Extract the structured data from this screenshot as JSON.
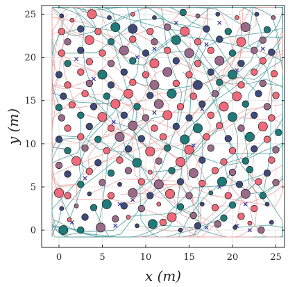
{
  "chart_data": {
    "type": "scatter",
    "title": "",
    "xlabel": "x (m)",
    "ylabel": "y (m)",
    "xlim": [
      -2,
      26
    ],
    "ylim": [
      -2,
      26
    ],
    "x_ticks": [
      0,
      5,
      10,
      15,
      20,
      25
    ],
    "y_ticks": [
      0,
      5,
      10,
      15,
      20,
      25
    ],
    "grid": true,
    "legend": "none",
    "colors": {
      "teal": "#1f7a7a",
      "pink": "#f06a7a",
      "navy": "#3d4a7a",
      "mauve": "#9a6a8a",
      "trajectory_pink": "#e8a0a0",
      "trajectory_teal": "#4a9a9a",
      "cross": "#3a3aa0"
    },
    "points": [
      [
        0.5,
        0.0,
        "teal",
        "l"
      ],
      [
        2.5,
        0.0,
        "teal",
        "m"
      ],
      [
        4.8,
        0.3,
        "mauve",
        "l"
      ],
      [
        9.0,
        0.5,
        "navy",
        "s"
      ],
      [
        10.8,
        0.7,
        "teal",
        "l"
      ],
      [
        12.0,
        0.9,
        "pink",
        "m"
      ],
      [
        14.0,
        0.0,
        "navy",
        "s"
      ],
      [
        16.0,
        0.5,
        "navy",
        "m"
      ],
      [
        18.3,
        0.7,
        "mauve",
        "m"
      ],
      [
        20.3,
        0.3,
        "navy",
        "s"
      ],
      [
        22.0,
        0.8,
        "pink",
        "s"
      ],
      [
        23.3,
        0.0,
        "mauve",
        "m"
      ],
      [
        24.5,
        0.9,
        "navy",
        "s"
      ],
      [
        1.2,
        1.2,
        "pink",
        "s"
      ],
      [
        3.0,
        1.5,
        "navy",
        "m"
      ],
      [
        6.5,
        1.3,
        "mauve",
        "m"
      ],
      [
        8.0,
        1.5,
        "pink",
        "s"
      ],
      [
        13.0,
        1.5,
        "pink",
        "l"
      ],
      [
        15.5,
        1.7,
        "mauve",
        "m"
      ],
      [
        19.0,
        1.4,
        "teal",
        "m"
      ],
      [
        21.0,
        1.6,
        "pink",
        "m"
      ],
      [
        0.3,
        2.5,
        "navy",
        "s"
      ],
      [
        2.0,
        2.8,
        "mauve",
        "s"
      ],
      [
        4.0,
        2.6,
        "teal",
        "m"
      ],
      [
        5.5,
        3.0,
        "teal",
        "l"
      ],
      [
        7.5,
        2.8,
        "navy",
        "m"
      ],
      [
        9.5,
        2.5,
        "mauve",
        "m"
      ],
      [
        11.5,
        3.0,
        "pink",
        "s"
      ],
      [
        14.0,
        2.7,
        "teal",
        "m"
      ],
      [
        16.5,
        3.0,
        "navy",
        "s"
      ],
      [
        18.0,
        2.6,
        "pink",
        "m"
      ],
      [
        20.0,
        2.9,
        "teal",
        "m"
      ],
      [
        22.5,
        2.5,
        "pink",
        "m"
      ],
      [
        24.0,
        3.0,
        "navy",
        "s"
      ],
      [
        1.0,
        4.0,
        "pink",
        "m"
      ],
      [
        3.5,
        4.2,
        "navy",
        "s"
      ],
      [
        6.0,
        4.0,
        "pink",
        "m"
      ],
      [
        8.5,
        4.3,
        "mauve",
        "l"
      ],
      [
        10.5,
        4.0,
        "navy",
        "m"
      ],
      [
        12.8,
        4.2,
        "pink",
        "l"
      ],
      [
        15.0,
        4.0,
        "mauve",
        "m"
      ],
      [
        17.5,
        4.3,
        "teal",
        "s"
      ],
      [
        19.5,
        4.0,
        "pink",
        "m"
      ],
      [
        21.5,
        4.2,
        "mauve",
        "l"
      ],
      [
        23.5,
        4.0,
        "teal",
        "m"
      ],
      [
        0.0,
        4.3,
        "pink",
        "l"
      ],
      [
        2.5,
        5.3,
        "teal",
        "m"
      ],
      [
        5.0,
        5.5,
        "mauve",
        "m"
      ],
      [
        7.0,
        5.3,
        "navy",
        "s"
      ],
      [
        9.5,
        5.6,
        "pink",
        "m"
      ],
      [
        11.5,
        5.3,
        "mauve",
        "l"
      ],
      [
        14.0,
        5.6,
        "navy",
        "m"
      ],
      [
        16.5,
        5.4,
        "pink",
        "m"
      ],
      [
        18.8,
        5.6,
        "teal",
        "l"
      ],
      [
        20.8,
        5.3,
        "navy",
        "m"
      ],
      [
        23.0,
        5.6,
        "pink",
        "m"
      ],
      [
        25.0,
        5.5,
        "mauve",
        "m"
      ],
      [
        1.0,
        6.5,
        "navy",
        "m"
      ],
      [
        3.5,
        6.8,
        "pink",
        "m"
      ],
      [
        6.0,
        6.6,
        "teal",
        "m"
      ],
      [
        8.0,
        6.9,
        "mauve",
        "m"
      ],
      [
        10.5,
        6.7,
        "pink",
        "s"
      ],
      [
        13.0,
        6.9,
        "teal",
        "m"
      ],
      [
        15.5,
        6.6,
        "mauve",
        "l"
      ],
      [
        18.0,
        6.9,
        "pink",
        "m"
      ],
      [
        20.0,
        6.7,
        "mauve",
        "m"
      ],
      [
        22.0,
        7.0,
        "teal",
        "m"
      ],
      [
        24.0,
        6.6,
        "navy",
        "m"
      ],
      [
        0.0,
        7.5,
        "mauve",
        "m"
      ],
      [
        2.0,
        8.0,
        "pink",
        "l"
      ],
      [
        4.5,
        7.8,
        "navy",
        "m"
      ],
      [
        7.0,
        8.1,
        "pink",
        "m"
      ],
      [
        9.0,
        7.8,
        "teal",
        "l"
      ],
      [
        11.5,
        8.0,
        "mauve",
        "m"
      ],
      [
        14.0,
        7.9,
        "pink",
        "l"
      ],
      [
        16.5,
        8.1,
        "navy",
        "m"
      ],
      [
        19.0,
        7.9,
        "pink",
        "m"
      ],
      [
        21.5,
        8.0,
        "teal",
        "m"
      ],
      [
        24.5,
        8.1,
        "pink",
        "m"
      ],
      [
        1.0,
        9.2,
        "teal",
        "m"
      ],
      [
        3.0,
        9.5,
        "mauve",
        "m"
      ],
      [
        5.5,
        9.2,
        "pink",
        "m"
      ],
      [
        8.0,
        9.4,
        "navy",
        "m"
      ],
      [
        10.5,
        9.1,
        "pink",
        "l"
      ],
      [
        12.5,
        9.5,
        "teal",
        "m"
      ],
      [
        15.0,
        9.3,
        "pink",
        "l"
      ],
      [
        17.5,
        9.5,
        "mauve",
        "m"
      ],
      [
        20.0,
        9.2,
        "pink",
        "m"
      ],
      [
        22.5,
        9.4,
        "navy",
        "m"
      ],
      [
        25.0,
        9.3,
        "mauve",
        "m"
      ],
      [
        0.0,
        10.5,
        "navy",
        "m"
      ],
      [
        2.5,
        10.8,
        "pink",
        "m"
      ],
      [
        4.5,
        10.5,
        "teal",
        "m"
      ],
      [
        7.0,
        10.8,
        "mauve",
        "l"
      ],
      [
        9.5,
        10.6,
        "navy",
        "m"
      ],
      [
        12.0,
        10.8,
        "pink",
        "m"
      ],
      [
        14.5,
        10.5,
        "teal",
        "l"
      ],
      [
        17.0,
        10.8,
        "pink",
        "m"
      ],
      [
        19.5,
        10.6,
        "navy",
        "m"
      ],
      [
        22.0,
        10.8,
        "teal",
        "l"
      ],
      [
        24.0,
        10.5,
        "pink",
        "m"
      ],
      [
        1.0,
        11.8,
        "pink",
        "m"
      ],
      [
        3.5,
        12.0,
        "navy",
        "m"
      ],
      [
        6.0,
        11.8,
        "pink",
        "m"
      ],
      [
        8.5,
        12.1,
        "mauve",
        "l"
      ],
      [
        11.0,
        11.8,
        "pink",
        "m"
      ],
      [
        13.5,
        12.0,
        "navy",
        "m"
      ],
      [
        16.0,
        11.8,
        "teal",
        "l"
      ],
      [
        18.5,
        12.1,
        "pink",
        "m"
      ],
      [
        21.0,
        11.8,
        "mauve",
        "m"
      ],
      [
        23.5,
        12.0,
        "pink",
        "l"
      ],
      [
        25.3,
        11.3,
        "teal",
        "m"
      ],
      [
        0.3,
        13.0,
        "mauve",
        "m"
      ],
      [
        2.5,
        13.3,
        "teal",
        "m"
      ],
      [
        5.0,
        13.1,
        "pink",
        "l"
      ],
      [
        7.5,
        13.3,
        "navy",
        "m"
      ],
      [
        10.0,
        13.0,
        "mauve",
        "m"
      ],
      [
        12.5,
        13.3,
        "pink",
        "l"
      ],
      [
        15.0,
        13.0,
        "navy",
        "m"
      ],
      [
        17.5,
        13.3,
        "pink",
        "m"
      ],
      [
        20.0,
        13.1,
        "teal",
        "l"
      ],
      [
        22.5,
        13.3,
        "navy",
        "m"
      ],
      [
        24.5,
        13.0,
        "pink",
        "m"
      ],
      [
        0.0,
        14.2,
        "teal",
        "m"
      ],
      [
        1.5,
        14.5,
        "pink",
        "m"
      ],
      [
        4.0,
        14.3,
        "navy",
        "m"
      ],
      [
        6.5,
        14.6,
        "pink",
        "l"
      ],
      [
        9.0,
        14.3,
        "teal",
        "m"
      ],
      [
        11.5,
        14.6,
        "mauve",
        "l"
      ],
      [
        14.0,
        14.3,
        "pink",
        "m"
      ],
      [
        16.5,
        14.6,
        "navy",
        "m"
      ],
      [
        19.0,
        14.3,
        "pink",
        "l"
      ],
      [
        21.5,
        14.6,
        "teal",
        "m"
      ],
      [
        24.0,
        14.3,
        "mauve",
        "m"
      ],
      [
        0.5,
        15.5,
        "navy",
        "m"
      ],
      [
        3.0,
        15.8,
        "pink",
        "m"
      ],
      [
        5.5,
        15.5,
        "teal",
        "m"
      ],
      [
        8.0,
        15.8,
        "pink",
        "l"
      ],
      [
        10.5,
        15.6,
        "navy",
        "m"
      ],
      [
        13.0,
        15.8,
        "teal",
        "l"
      ],
      [
        15.5,
        15.5,
        "pink",
        "m"
      ],
      [
        18.0,
        15.8,
        "mauve",
        "m"
      ],
      [
        20.5,
        15.5,
        "pink",
        "l"
      ],
      [
        23.0,
        15.8,
        "navy",
        "m"
      ],
      [
        25.0,
        15.6,
        "pink",
        "m"
      ],
      [
        1.0,
        16.8,
        "pink",
        "m"
      ],
      [
        3.5,
        17.0,
        "mauve",
        "m"
      ],
      [
        6.0,
        16.8,
        "navy",
        "m"
      ],
      [
        8.5,
        17.1,
        "pink",
        "m"
      ],
      [
        11.0,
        16.8,
        "mauve",
        "l"
      ],
      [
        13.5,
        17.0,
        "pink",
        "m"
      ],
      [
        16.0,
        16.8,
        "navy",
        "l"
      ],
      [
        18.5,
        17.1,
        "teal",
        "m"
      ],
      [
        21.0,
        16.8,
        "pink",
        "m"
      ],
      [
        23.5,
        17.0,
        "mauve",
        "m"
      ],
      [
        0.0,
        18.0,
        "navy",
        "m"
      ],
      [
        2.5,
        18.3,
        "pink",
        "m"
      ],
      [
        5.0,
        18.0,
        "teal",
        "l"
      ],
      [
        7.5,
        18.3,
        "navy",
        "m"
      ],
      [
        10.0,
        18.0,
        "pink",
        "m"
      ],
      [
        12.5,
        18.3,
        "mauve",
        "l"
      ],
      [
        15.0,
        18.0,
        "pink",
        "m"
      ],
      [
        17.5,
        18.3,
        "navy",
        "m"
      ],
      [
        20.0,
        18.0,
        "teal",
        "l"
      ],
      [
        22.5,
        18.3,
        "pink",
        "m"
      ],
      [
        24.8,
        18.1,
        "pink",
        "m"
      ],
      [
        1.0,
        19.3,
        "teal",
        "m"
      ],
      [
        3.5,
        19.5,
        "pink",
        "m"
      ],
      [
        6.0,
        19.3,
        "mauve",
        "m"
      ],
      [
        8.5,
        19.6,
        "teal",
        "m"
      ],
      [
        11.0,
        19.3,
        "pink",
        "l"
      ],
      [
        13.5,
        19.6,
        "navy",
        "m"
      ],
      [
        16.0,
        19.3,
        "pink",
        "m"
      ],
      [
        18.5,
        19.6,
        "mauve",
        "l"
      ],
      [
        21.0,
        19.3,
        "navy",
        "m"
      ],
      [
        23.5,
        19.6,
        "pink",
        "m"
      ],
      [
        0.3,
        20.5,
        "pink",
        "m"
      ],
      [
        2.5,
        20.8,
        "navy",
        "m"
      ],
      [
        5.0,
        20.5,
        "pink",
        "m"
      ],
      [
        7.5,
        20.8,
        "mauve",
        "l"
      ],
      [
        10.0,
        20.5,
        "navy",
        "m"
      ],
      [
        12.5,
        20.8,
        "pink",
        "m"
      ],
      [
        15.0,
        20.5,
        "mauve",
        "l"
      ],
      [
        17.5,
        20.8,
        "pink",
        "m"
      ],
      [
        20.0,
        20.5,
        "teal",
        "m"
      ],
      [
        22.5,
        20.8,
        "mauve",
        "m"
      ],
      [
        24.5,
        20.6,
        "navy",
        "m"
      ],
      [
        1.0,
        21.8,
        "mauve",
        "m"
      ],
      [
        3.5,
        22.0,
        "pink",
        "l"
      ],
      [
        6.0,
        21.8,
        "teal",
        "m"
      ],
      [
        8.5,
        22.1,
        "pink",
        "m"
      ],
      [
        11.0,
        21.8,
        "mauve",
        "m"
      ],
      [
        13.5,
        22.0,
        "teal",
        "l"
      ],
      [
        16.0,
        21.8,
        "pink",
        "m"
      ],
      [
        18.5,
        22.1,
        "navy",
        "m"
      ],
      [
        21.0,
        21.8,
        "pink",
        "l"
      ],
      [
        23.5,
        22.0,
        "mauve",
        "m"
      ],
      [
        0.3,
        23.0,
        "pink",
        "m"
      ],
      [
        2.5,
        23.3,
        "navy",
        "m"
      ],
      [
        4.5,
        23.0,
        "pink",
        "m"
      ],
      [
        6.5,
        23.5,
        "teal",
        "l"
      ],
      [
        8.5,
        23.3,
        "navy",
        "l"
      ],
      [
        10.5,
        23.0,
        "pink",
        "m"
      ],
      [
        12.5,
        23.5,
        "mauve",
        "m"
      ],
      [
        14.5,
        23.0,
        "pink",
        "l"
      ],
      [
        17.0,
        23.3,
        "navy",
        "m"
      ],
      [
        19.5,
        23.0,
        "teal",
        "m"
      ],
      [
        21.5,
        23.5,
        "mauve",
        "l"
      ],
      [
        24.0,
        23.2,
        "teal",
        "m"
      ],
      [
        0.3,
        24.8,
        "navy",
        "s"
      ],
      [
        1.5,
        24.3,
        "pink",
        "s"
      ],
      [
        3.8,
        25.0,
        "pink",
        "l"
      ],
      [
        5.8,
        24.6,
        "navy",
        "s"
      ],
      [
        8.5,
        25.0,
        "pink",
        "s"
      ],
      [
        11.0,
        24.6,
        "navy",
        "s"
      ],
      [
        14.3,
        25.2,
        "teal",
        "m"
      ],
      [
        16.0,
        24.8,
        "mauve",
        "s"
      ],
      [
        18.3,
        25.0,
        "navy",
        "s"
      ],
      [
        20.5,
        24.6,
        "pink",
        "s"
      ],
      [
        22.8,
        25.0,
        "navy",
        "s"
      ],
      [
        24.7,
        24.6,
        "mauve",
        "s"
      ]
    ],
    "crosses": [
      [
        1.5,
        0.9
      ],
      [
        6.5,
        0.5
      ],
      [
        17.0,
        0.3
      ],
      [
        20.5,
        0.5
      ],
      [
        22.0,
        0.0
      ],
      [
        8.5,
        3.5
      ],
      [
        18.5,
        5.0
      ],
      [
        21.5,
        3.0
      ],
      [
        3.0,
        6.0
      ],
      [
        15.5,
        9.8
      ],
      [
        11.0,
        13.6
      ],
      [
        6.3,
        12.5
      ],
      [
        20.5,
        18.5
      ],
      [
        2.0,
        19.8
      ],
      [
        9.0,
        20.0
      ],
      [
        11.0,
        21.0
      ],
      [
        18.5,
        24.0
      ],
      [
        13.5,
        24.0
      ],
      [
        17.0,
        21.5
      ],
      [
        23.5,
        21.0
      ],
      [
        4.0,
        17.5
      ],
      [
        16.5,
        14.0
      ],
      [
        7.0,
        3.0
      ]
    ],
    "trajectory_count": 120
  }
}
